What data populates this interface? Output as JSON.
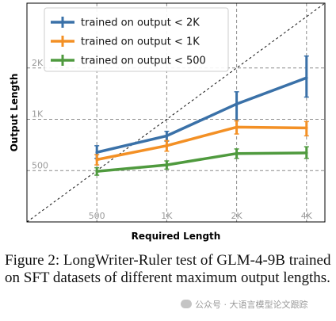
{
  "chart_data": {
    "type": "line",
    "xlabel": "Required Length",
    "ylabel": "Output Length",
    "x_scale": "log2",
    "y_scale": "log2",
    "x_ticks": [
      500,
      1000,
      2000,
      4000
    ],
    "x_tick_labels": [
      "500",
      "1K",
      "2K",
      "4K"
    ],
    "y_ticks": [
      500,
      1000,
      2000
    ],
    "y_tick_labels": [
      "500",
      "1K",
      "2K"
    ],
    "xlim": [
      250,
      4800
    ],
    "ylim": [
      250,
      4800
    ],
    "grid": "dashed",
    "diagonal_reference": "y = x (dashed)",
    "legend_position": "top-left",
    "colors": {
      "blue": "#3a71a8",
      "orange": "#f39025",
      "green": "#4f9a3e"
    },
    "series": [
      {
        "name": "trained on output < 2K",
        "color": "#3a71a8",
        "x": [
          500,
          1000,
          2000,
          4000
        ],
        "y": [
          640,
          800,
          1230,
          1750
        ],
        "err": [
          [
            590,
            700
          ],
          [
            745,
            850
          ],
          [
            980,
            1450
          ],
          [
            1350,
            2350
          ]
        ]
      },
      {
        "name": "trained on output < 1K",
        "color": "#f39025",
        "x": [
          500,
          1000,
          2000,
          4000
        ],
        "y": [
          580,
          700,
          900,
          890
        ],
        "err": [
          [
            540,
            620
          ],
          [
            650,
            750
          ],
          [
            820,
            980
          ],
          [
            800,
            970
          ]
        ]
      },
      {
        "name": "trained on output < 500",
        "color": "#4f9a3e",
        "x": [
          500,
          1000,
          2000,
          4000
        ],
        "y": [
          495,
          540,
          630,
          635
        ],
        "err": [
          [
            470,
            520
          ],
          [
            510,
            570
          ],
          [
            590,
            670
          ],
          [
            590,
            690
          ]
        ]
      }
    ]
  },
  "caption": {
    "text": "Figure 2: LongWriter-Ruler test of GLM-4-9B trained on SFT datasets of different maximum output lengths."
  },
  "watermark": {
    "text": "公众号 · 大语言模型论文跟踪"
  }
}
